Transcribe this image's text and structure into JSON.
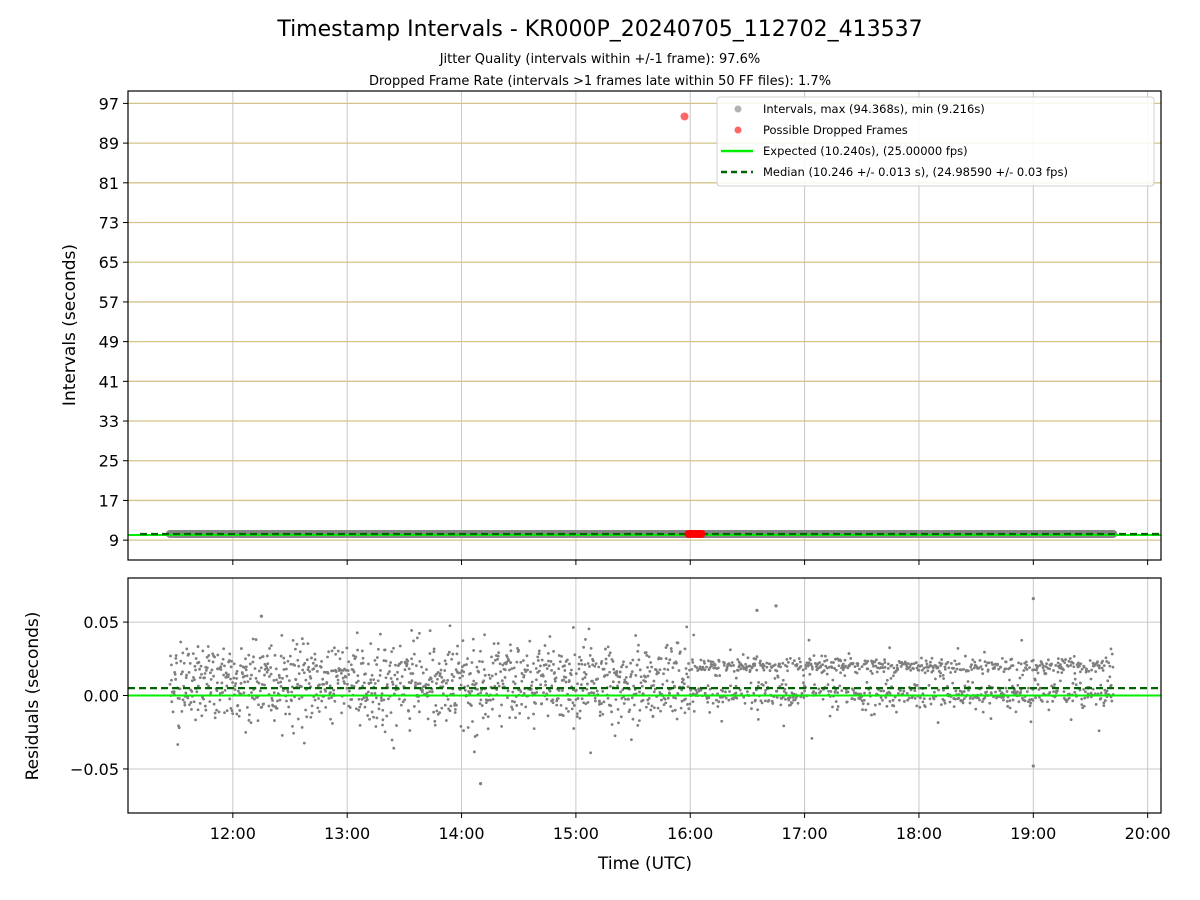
{
  "chart_data": {
    "type": "scatter",
    "title": "Timestamp Intervals - KR000P_20240705_112702_413537",
    "subtitles": [
      "Jitter Quality (intervals within +/-1 frame): 97.6%",
      "Dropped Frame Rate (intervals >1 frames late within 50 FF files): 1.7%"
    ],
    "top_panel": {
      "ylabel": "Intervals (seconds)",
      "yticks": [
        9,
        17,
        25,
        33,
        41,
        49,
        57,
        65,
        73,
        81,
        89,
        97
      ],
      "ylim": [
        5,
        99.5
      ],
      "grid": true,
      "legend_position": "upper-right",
      "legend": [
        "Intervals, max (94.368s), min (9.216s)",
        "Possible Dropped Frames",
        "Expected (10.240s), (25.00000 fps)",
        "Median (10.246 +/- 0.013 s), (24.98590 +/- 0.03 fps)"
      ],
      "interval_band": {
        "value": 10.246,
        "x_start": "11:27",
        "x_end": "19:42"
      },
      "dropped_frames": [
        {
          "x": "15:57",
          "y": 94.368
        },
        {
          "x": "15:59",
          "y": 10.25
        },
        {
          "x": "16:00",
          "y": 10.25
        },
        {
          "x": "16:01",
          "y": 10.25
        },
        {
          "x": "16:02",
          "y": 10.25
        },
        {
          "x": "16:03",
          "y": 10.25
        },
        {
          "x": "16:04",
          "y": 10.25
        },
        {
          "x": "16:05",
          "y": 10.25
        },
        {
          "x": "16:06",
          "y": 10.25
        }
      ],
      "expected_line": 10.24,
      "median_line": 10.246
    },
    "bottom_panel": {
      "ylabel": "Residuals (seconds)",
      "yticks": [
        -0.05,
        0.0,
        0.05
      ],
      "ytick_labels": [
        "−0.05",
        "0.00",
        "0.05"
      ],
      "ylim": [
        -0.08,
        0.08
      ],
      "grid": true,
      "expected_line": 0.0,
      "median_line": 0.005,
      "residual_spread": {
        "center": 0.006,
        "std": 0.015
      },
      "outliers": [
        {
          "x": "19:00",
          "y": 0.066
        },
        {
          "x": "19:00",
          "y": -0.048
        },
        {
          "x": "14:10",
          "y": -0.06
        },
        {
          "x": "12:15",
          "y": 0.054
        },
        {
          "x": "16:45",
          "y": 0.061
        },
        {
          "x": "16:35",
          "y": 0.058
        }
      ]
    },
    "xlabel": "Time (UTC)",
    "xticks": [
      "12:00",
      "13:00",
      "14:00",
      "15:00",
      "16:00",
      "17:00",
      "18:00",
      "19:00",
      "20:00"
    ],
    "xlim": [
      "11:05",
      "20:07"
    ],
    "colors": {
      "points": "#7f7f7f",
      "dropped": "#ff0000",
      "expected": "#00ee00",
      "median": "#006400",
      "hgrid_top": "#d4c48a",
      "grid": "#c8c8c8"
    }
  }
}
